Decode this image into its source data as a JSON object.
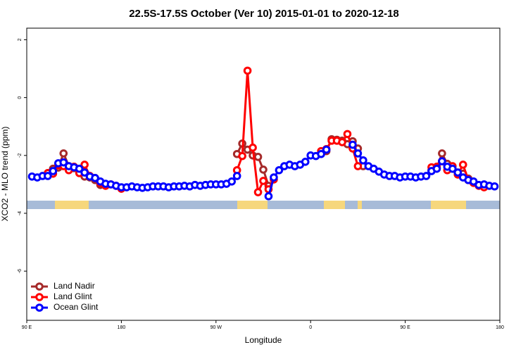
{
  "chart_data": {
    "type": "line",
    "title": "22.5S-17.5S October (Ver 10)   2015-01-01 to 2020-12-18",
    "xlabel": "Longitude",
    "ylabel": "XCO2 - MLO trend (ppm)",
    "xlim": [
      -270,
      180
    ],
    "xticks": [
      {
        "value": -270,
        "label": "90 E"
      },
      {
        "value": -180,
        "label": "180"
      },
      {
        "value": -90,
        "label": "90 W"
      },
      0,
      {
        "value": 90,
        "label": "90 E"
      },
      {
        "value": 180,
        "label": "180"
      }
    ],
    "ylim": [
      -7.7,
      2.4
    ],
    "yticks": [
      -6,
      -4,
      -2,
      0,
      2
    ],
    "legend": "bottom-left",
    "x": [
      -265,
      -260,
      -255,
      -250,
      -245,
      -240,
      -235,
      -230,
      -225,
      -220,
      -215,
      -210,
      -205,
      -200,
      -195,
      -190,
      -185,
      -180,
      -175,
      -170,
      -165,
      -160,
      -155,
      -150,
      -145,
      -140,
      -135,
      -130,
      -125,
      -120,
      -115,
      -110,
      -105,
      -100,
      -95,
      -90,
      -85,
      -80,
      -75,
      -70,
      -65,
      -60,
      -55,
      -50,
      -45,
      -40,
      -35,
      -30,
      -25,
      -20,
      -15,
      -10,
      -5,
      0,
      5,
      10,
      15,
      20,
      25,
      30,
      35,
      40,
      45,
      50,
      55,
      60,
      65,
      70,
      75,
      80,
      85,
      90,
      95,
      100,
      105,
      110,
      115,
      120,
      125,
      130,
      135,
      140,
      145,
      150,
      155,
      160,
      165,
      170,
      175
    ],
    "series": [
      {
        "name": "Land Nadir",
        "color": "#a52a2a",
        "values": [
          null,
          null,
          null,
          null,
          -2.46,
          -2.42,
          -1.93,
          -2.37,
          -2.44,
          -2.56,
          -2.73,
          -2.76,
          -2.85,
          -3.02,
          -3.02,
          null,
          null,
          null,
          null,
          null,
          null,
          null,
          null,
          null,
          null,
          null,
          null,
          null,
          null,
          null,
          null,
          null,
          null,
          null,
          null,
          null,
          null,
          null,
          null,
          -1.95,
          -1.59,
          -1.8,
          -2.0,
          -2.05,
          -2.49,
          -3.05,
          null,
          null,
          null,
          null,
          null,
          null,
          null,
          null,
          null,
          null,
          -1.85,
          -1.44,
          -1.46,
          -1.49,
          -1.61,
          -1.51,
          -1.76,
          -2.37,
          null,
          null,
          null,
          null,
          null,
          null,
          null,
          null,
          null,
          null,
          null,
          null,
          -2.51,
          -2.44,
          -1.93,
          -2.29,
          -2.46,
          -2.59,
          -2.63,
          -2.8,
          null,
          null,
          null,
          null,
          null
        ]
      },
      {
        "name": "Land Glint",
        "color": "#ff0000",
        "values": [
          null,
          null,
          null,
          -2.61,
          -2.63,
          -2.34,
          -2.37,
          -2.51,
          -2.39,
          -2.61,
          -2.32,
          -2.71,
          -2.78,
          -2.95,
          -3.05,
          -3.0,
          -3.05,
          -3.15,
          null,
          null,
          null,
          null,
          null,
          null,
          null,
          null,
          null,
          null,
          null,
          null,
          null,
          null,
          null,
          null,
          null,
          null,
          null,
          null,
          null,
          -2.51,
          -2.02,
          0.93,
          -1.73,
          -3.27,
          -2.88,
          -3.17,
          -2.83,
          null,
          null,
          null,
          null,
          null,
          null,
          null,
          null,
          -1.85,
          -1.78,
          -1.49,
          -1.49,
          -1.54,
          -1.26,
          -1.76,
          -2.37,
          null,
          null,
          null,
          null,
          null,
          null,
          null,
          null,
          null,
          null,
          null,
          null,
          null,
          -2.41,
          -2.39,
          -2.2,
          -2.51,
          -2.37,
          -2.66,
          -2.32,
          -2.85,
          -2.95,
          -3.05,
          -3.1,
          null,
          null
        ]
      },
      {
        "name": "Ocean Glint",
        "color": "#0000ff",
        "values": [
          -2.73,
          -2.76,
          -2.71,
          -2.71,
          -2.54,
          -2.27,
          -2.24,
          -2.37,
          -2.41,
          -2.46,
          -2.59,
          -2.73,
          -2.78,
          -2.9,
          -2.98,
          -3.0,
          -3.05,
          -3.1,
          -3.1,
          -3.07,
          -3.1,
          -3.12,
          -3.1,
          -3.07,
          -3.07,
          -3.07,
          -3.1,
          -3.07,
          -3.07,
          -3.05,
          -3.07,
          -3.02,
          -3.05,
          -3.02,
          -3.0,
          -3.0,
          -3.0,
          -2.98,
          -2.9,
          -2.71,
          null,
          null,
          null,
          null,
          null,
          -3.41,
          -2.76,
          -2.51,
          -2.37,
          -2.32,
          -2.37,
          -2.32,
          -2.22,
          -2.0,
          -2.02,
          -1.95,
          -1.8,
          null,
          null,
          null,
          null,
          -1.63,
          -1.93,
          -2.17,
          -2.37,
          -2.46,
          -2.56,
          -2.66,
          -2.71,
          -2.71,
          -2.76,
          -2.73,
          -2.73,
          -2.76,
          -2.73,
          -2.71,
          -2.54,
          -2.46,
          -2.2,
          -2.39,
          -2.46,
          -2.59,
          -2.76,
          -2.85,
          -2.9,
          -3.02,
          -3.0,
          -3.05,
          -3.07
        ]
      }
    ]
  }
}
